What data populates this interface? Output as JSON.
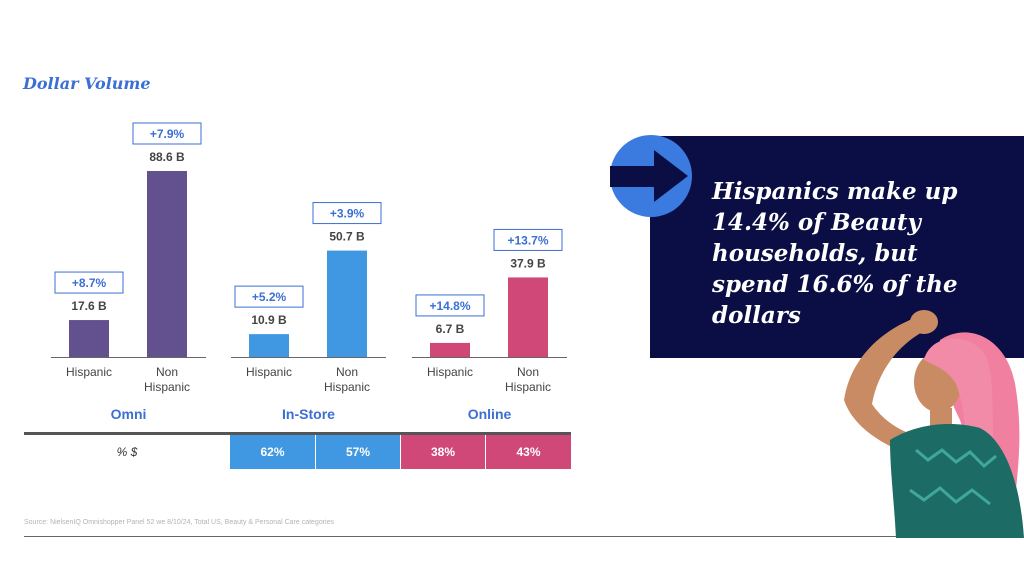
{
  "title": "Dollar Volume",
  "chart_data": {
    "type": "bar",
    "title": "Dollar Volume",
    "ylim": [
      0,
      100
    ],
    "grid": false,
    "groups": [
      {
        "name": "Omni",
        "color": "#63518f",
        "bars": [
          {
            "category": "Hispanic",
            "value": 17.6,
            "value_label": "17.6 B",
            "growth": "+8.7%"
          },
          {
            "category": "Non Hispanic",
            "value": 88.6,
            "value_label": "88.6 B",
            "growth": "+7.9%"
          }
        ]
      },
      {
        "name": "In-Store",
        "color": "#4097e2",
        "bars": [
          {
            "category": "Hispanic",
            "value": 10.9,
            "value_label": "10.9 B",
            "growth": "+5.2%"
          },
          {
            "category": "Non Hispanic",
            "value": 50.7,
            "value_label": "50.7 B",
            "growth": "+3.9%"
          }
        ]
      },
      {
        "name": "Online",
        "color": "#cf4878",
        "bars": [
          {
            "category": "Hispanic",
            "value": 6.7,
            "value_label": "6.7 B",
            "growth": "+14.8%"
          },
          {
            "category": "Non Hispanic",
            "value": 37.9,
            "value_label": "37.9 B",
            "growth": "+13.7%"
          }
        ]
      }
    ],
    "category_labels": [
      [
        "Hispanic"
      ],
      [
        "Non",
        "Hispanic"
      ]
    ]
  },
  "table": {
    "row_label": "% $",
    "cells": [
      {
        "value": "62%",
        "color": "#4097e2"
      },
      {
        "value": "57%",
        "color": "#4097e2"
      },
      {
        "value": "38%",
        "color": "#cf4878"
      },
      {
        "value": "43%",
        "color": "#cf4878"
      }
    ]
  },
  "source": "Source: NielsenIQ Omnishopper Panel 52 we 8/10/24, Total US, Beauty & Personal Care categories",
  "callout": {
    "text": "Hispanics make up 14.4% of Beauty households, but spend 16.6% of the dollars",
    "bg_color": "#0a0e44"
  },
  "colors": {
    "accent_blue": "#3b6fd4",
    "arrow_blue": "#3b7be0"
  }
}
